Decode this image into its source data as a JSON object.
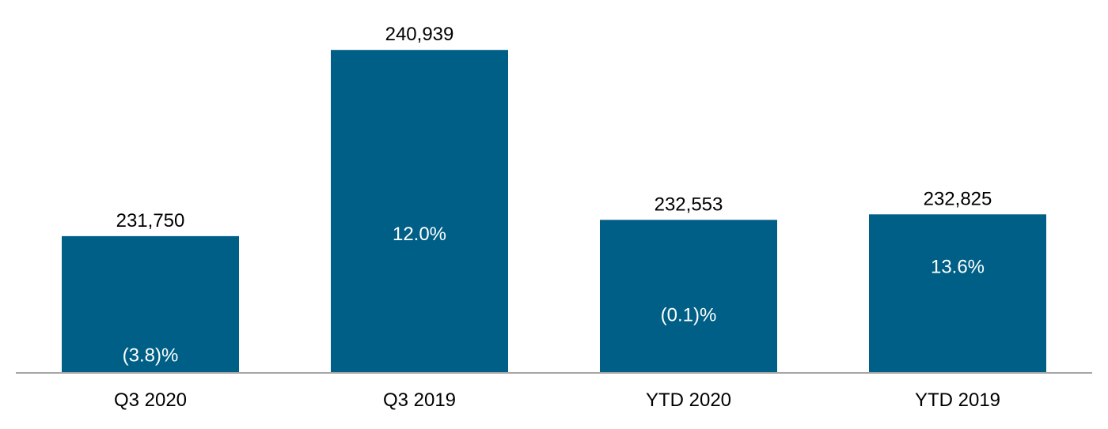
{
  "chart_data": {
    "type": "bar",
    "title": "",
    "xlabel": "",
    "ylabel": "",
    "ylim": [
      225000,
      242000
    ],
    "grid": false,
    "legend": "none",
    "categories": [
      "Q3 2020",
      "Q3 2019",
      "YTD 2020",
      "YTD 2019"
    ],
    "values": [
      231750,
      240939,
      232553,
      232825
    ],
    "value_labels": [
      "231,750",
      "240,939",
      "232,553",
      "232,825"
    ],
    "change_labels": [
      "(3.8)%",
      "12.0%",
      "(0.1)%",
      "13.6%"
    ],
    "colors": {
      "bar": "#005f86",
      "axis": "#a6a6a6",
      "value_text": "#000000",
      "change_text": "#ffffff"
    }
  }
}
